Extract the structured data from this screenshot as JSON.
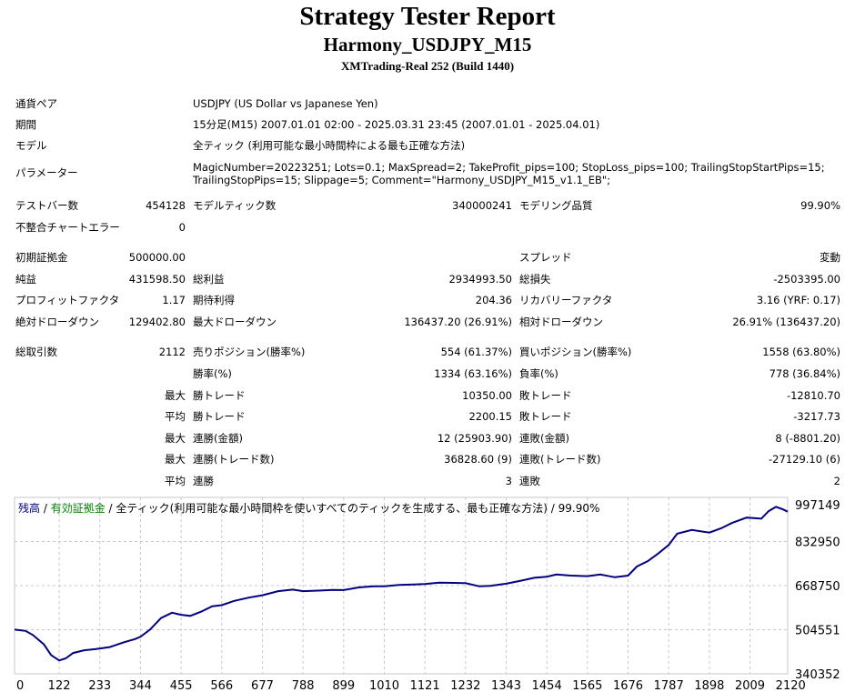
{
  "report": {
    "title": "Strategy Tester Report",
    "subtitle": "Harmony_USDJPY_M15",
    "server": "XMTrading-Real 252 (Build 1440)"
  },
  "info": {
    "pair_label": "通貨ペア",
    "pair_value": "USDJPY (US Dollar vs Japanese Yen)",
    "period_label": "期間",
    "period_value": "15分足(M15) 2007.01.01 02:00 - 2025.03.31 23:45 (2007.01.01 - 2025.04.01)",
    "model_label": "モデル",
    "model_value": "全ティック (利用可能な最小時間枠による最も正確な方法)",
    "params_label": "パラメーター",
    "params_line1": "MagicNumber=20223251; Lots=0.1; MaxSpread=2; TakeProfit_pips=100; StopLoss_pips=100; TrailingStopStartPips=15;",
    "params_line2": "TrailingStopPips=15; Slippage=5; Comment=\"Harmony_USDJPY_M15_v1.1_EB\";"
  },
  "stats": {
    "bars_label": "テストバー数",
    "bars_value": "454128",
    "ticks_label": "モデルティック数",
    "ticks_value": "340000241",
    "quality_label": "モデリング品質",
    "quality_value": "99.90%",
    "mismatch_label": "不整合チャートエラー",
    "mismatch_value": "0",
    "deposit_label": "初期証拠金",
    "deposit_value": "500000.00",
    "spread_label": "スプレッド",
    "spread_value": "変動",
    "netprofit_label": "純益",
    "netprofit_value": "431598.50",
    "grossprofit_label": "総利益",
    "grossprofit_value": "2934993.50",
    "grossloss_label": "総損失",
    "grossloss_value": "-2503395.00",
    "pf_label": "プロフィットファクタ",
    "pf_value": "1.17",
    "payoff_label": "期待利得",
    "payoff_value": "204.36",
    "recovery_label": "リカバリーファクタ",
    "recovery_value": "3.16 (YRF: 0.17)",
    "absdd_label": "絶対ドローダウン",
    "absdd_value": "129402.80",
    "maxdd_label": "最大ドローダウン",
    "maxdd_value": "136437.20 (26.91%)",
    "reldd_label": "相対ドローダウン",
    "reldd_value": "26.91% (136437.20)"
  },
  "trades": {
    "total_label": "総取引数",
    "total_value": "2112",
    "short_label": "売りポジション(勝率%)",
    "short_value": "554 (61.37%)",
    "long_label": "買いポジション(勝率%)",
    "long_value": "1558 (63.80%)",
    "winrate_label": "勝率(%)",
    "winrate_value": "1334 (63.16%)",
    "lossrate_label": "負率(%)",
    "lossrate_value": "778 (36.84%)",
    "max_prefix": "最大",
    "avg_prefix": "平均",
    "largest_win_label": "勝トレード",
    "largest_win_value": "10350.00",
    "largest_loss_label": "敗トレード",
    "largest_loss_value": "-12810.70",
    "avg_win_label": "勝トレード",
    "avg_win_value": "2200.15",
    "avg_loss_label": "敗トレード",
    "avg_loss_value": "-3217.73",
    "consec_win_amt_label": "連勝(金額)",
    "consec_win_amt_value": "12 (25903.90)",
    "consec_loss_amt_label": "連敗(金額)",
    "consec_loss_amt_value": "8 (-8801.20)",
    "consec_win_profit_label": "連勝(トレード数)",
    "consec_win_profit_value": "36828.60 (9)",
    "consec_loss_profit_label": "連敗(トレード数)",
    "consec_loss_profit_value": "-27129.10 (6)",
    "avg_consec_win_label": "連勝",
    "avg_consec_win_value": "3",
    "avg_consec_loss_label": "連敗",
    "avg_consec_loss_value": "2"
  },
  "chart_legend": {
    "balance": "残高",
    "sep1": " / ",
    "equity": "有効証拠金",
    "sep2": " / ",
    "model_desc": "全ティック(利用可能な最小時間枠を使いすべてのティックを生成する、最も正確な方法) / 99.90%",
    "balance_color": "#000080",
    "equity_color": "#008000"
  },
  "chart_data": {
    "type": "line",
    "title": "",
    "xlabel": "",
    "ylabel": "",
    "x_ticks": [
      0,
      122,
      233,
      344,
      455,
      566,
      677,
      788,
      899,
      1010,
      1121,
      1232,
      1343,
      1454,
      1565,
      1676,
      1787,
      1898,
      2009,
      2120
    ],
    "y_ticks": [
      997149,
      832950,
      668750,
      504551,
      340352
    ],
    "xlim": [
      0,
      2112
    ],
    "ylim": [
      340352,
      997149
    ],
    "line_color": "#000080",
    "grid": true,
    "series": [
      {
        "x": [
          0,
          30,
          50,
          80,
          100,
          122,
          140,
          160,
          190,
          220,
          260,
          300,
          330,
          344,
          370,
          400,
          430,
          455,
          480,
          510,
          540,
          566,
          600,
          640,
          677,
          720,
          760,
          788,
          830,
          870,
          899,
          940,
          980,
          1010,
          1050,
          1090,
          1121,
          1160,
          1200,
          1232,
          1270,
          1300,
          1343,
          1380,
          1420,
          1454,
          1480,
          1520,
          1565,
          1600,
          1640,
          1676,
          1700,
          1730,
          1760,
          1787,
          1810,
          1850,
          1898,
          1930,
          1960,
          2000,
          2040,
          2060,
          2080,
          2100,
          2112
        ],
        "y": [
          505000,
          500000,
          485000,
          450000,
          410000,
          390000,
          398000,
          418000,
          428000,
          432000,
          440000,
          458000,
          470000,
          478000,
          505000,
          548000,
          568000,
          560000,
          556000,
          572000,
          592000,
          596000,
          612000,
          624000,
          633000,
          648000,
          654000,
          648000,
          650000,
          653000,
          652000,
          662000,
          666000,
          666000,
          671000,
          673000,
          675000,
          680000,
          679000,
          678000,
          666000,
          668000,
          676000,
          686000,
          698000,
          702000,
          710000,
          706000,
          704000,
          710000,
          700000,
          706000,
          740000,
          760000,
          790000,
          820000,
          862000,
          876000,
          866000,
          882000,
          902000,
          922000,
          918000,
          946000,
          962000,
          952000,
          944000
        ]
      }
    ]
  }
}
